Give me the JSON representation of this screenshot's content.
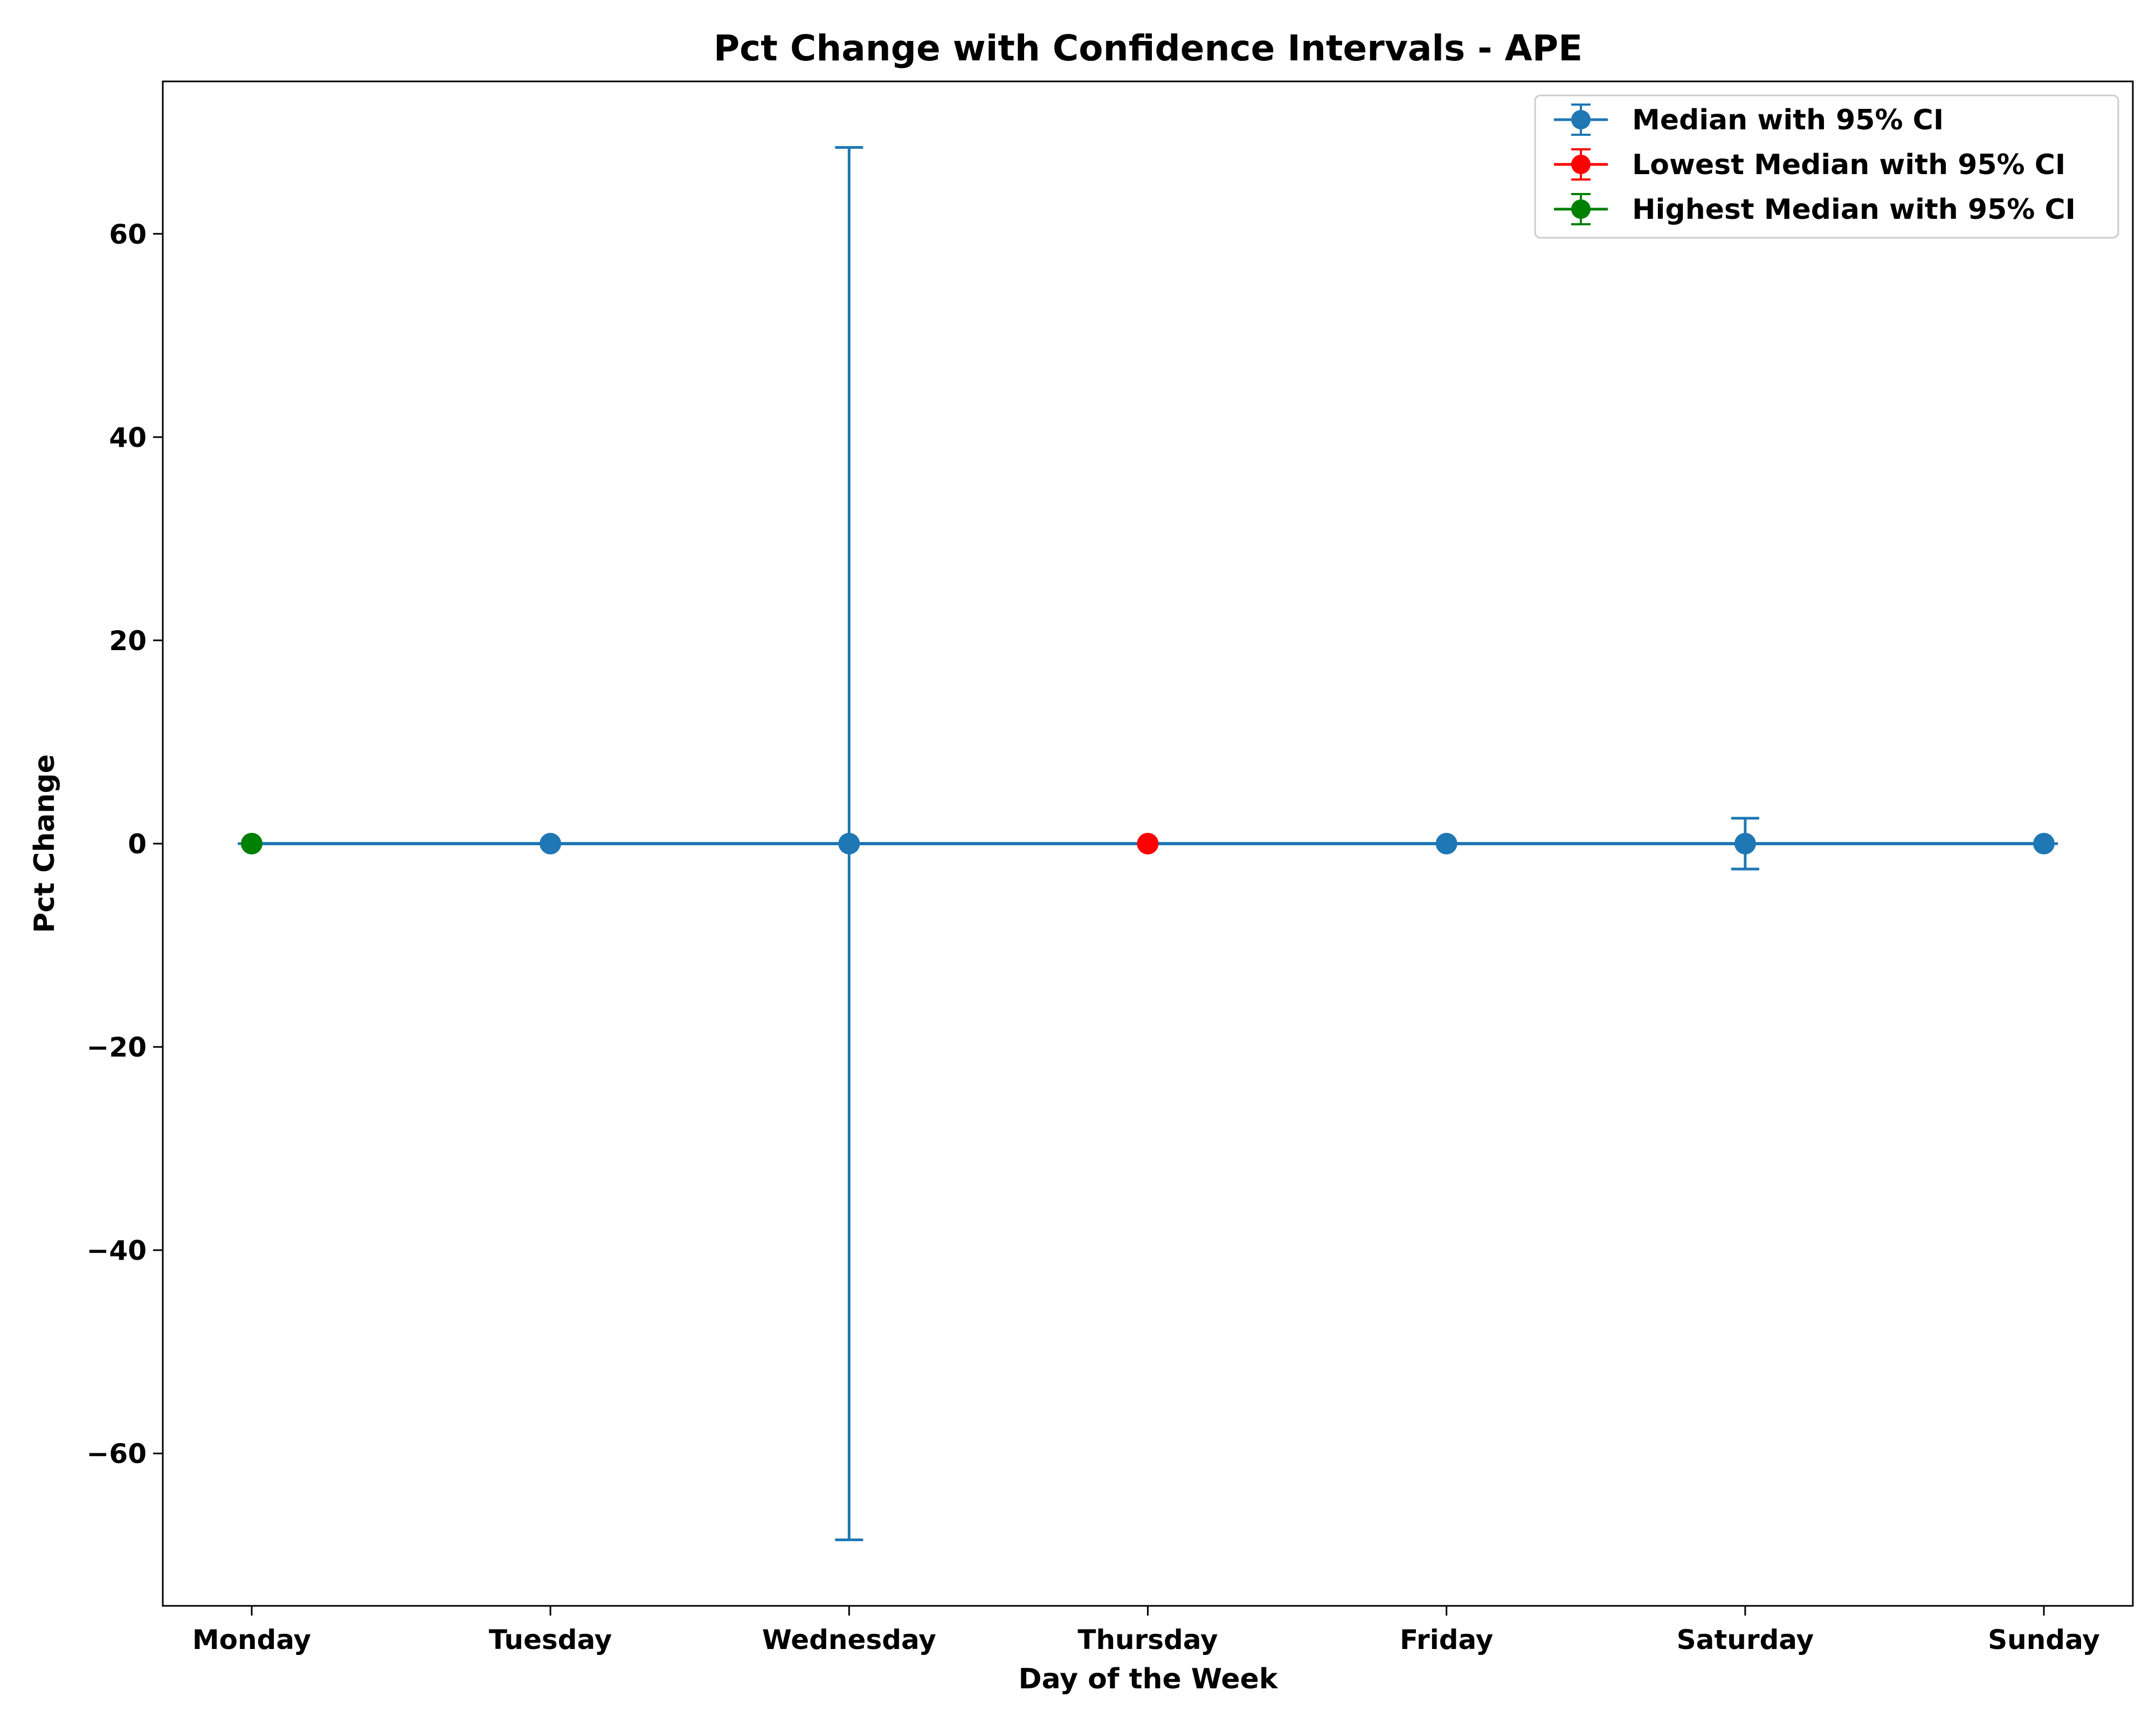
{
  "chart_data": {
    "type": "line",
    "title": "Pct Change with Confidence Intervals - APE",
    "xlabel": "Day of the Week",
    "ylabel": "Pct Change",
    "categories": [
      "Monday",
      "Tuesday",
      "Wednesday",
      "Thursday",
      "Friday",
      "Saturday",
      "Sunday"
    ],
    "ylim": [
      -75,
      75
    ],
    "yticks": [
      -60,
      -40,
      -20,
      0,
      20,
      40,
      60
    ],
    "ytick_labels": [
      "−60",
      "−40",
      "−20",
      "0",
      "20",
      "40",
      "60"
    ],
    "grid": false,
    "legend_position": "top-right",
    "series": [
      {
        "name": "Median with 95% CI",
        "color": "#1f77b4",
        "values": [
          0,
          0,
          0,
          0,
          0,
          0,
          0
        ],
        "ci_low": [
          0,
          0,
          -68.5,
          0,
          0,
          -2.5,
          0
        ],
        "ci_high": [
          0,
          0,
          68.5,
          0,
          0,
          2.5,
          0
        ]
      },
      {
        "name": "Lowest Median with 95% CI",
        "color": "#ff0000",
        "category": "Thursday",
        "value": 0,
        "ci_low": 0,
        "ci_high": 0
      },
      {
        "name": "Highest Median with 95% CI",
        "color": "#008000",
        "category": "Monday",
        "value": 0,
        "ci_low": 0,
        "ci_high": 0
      }
    ]
  }
}
